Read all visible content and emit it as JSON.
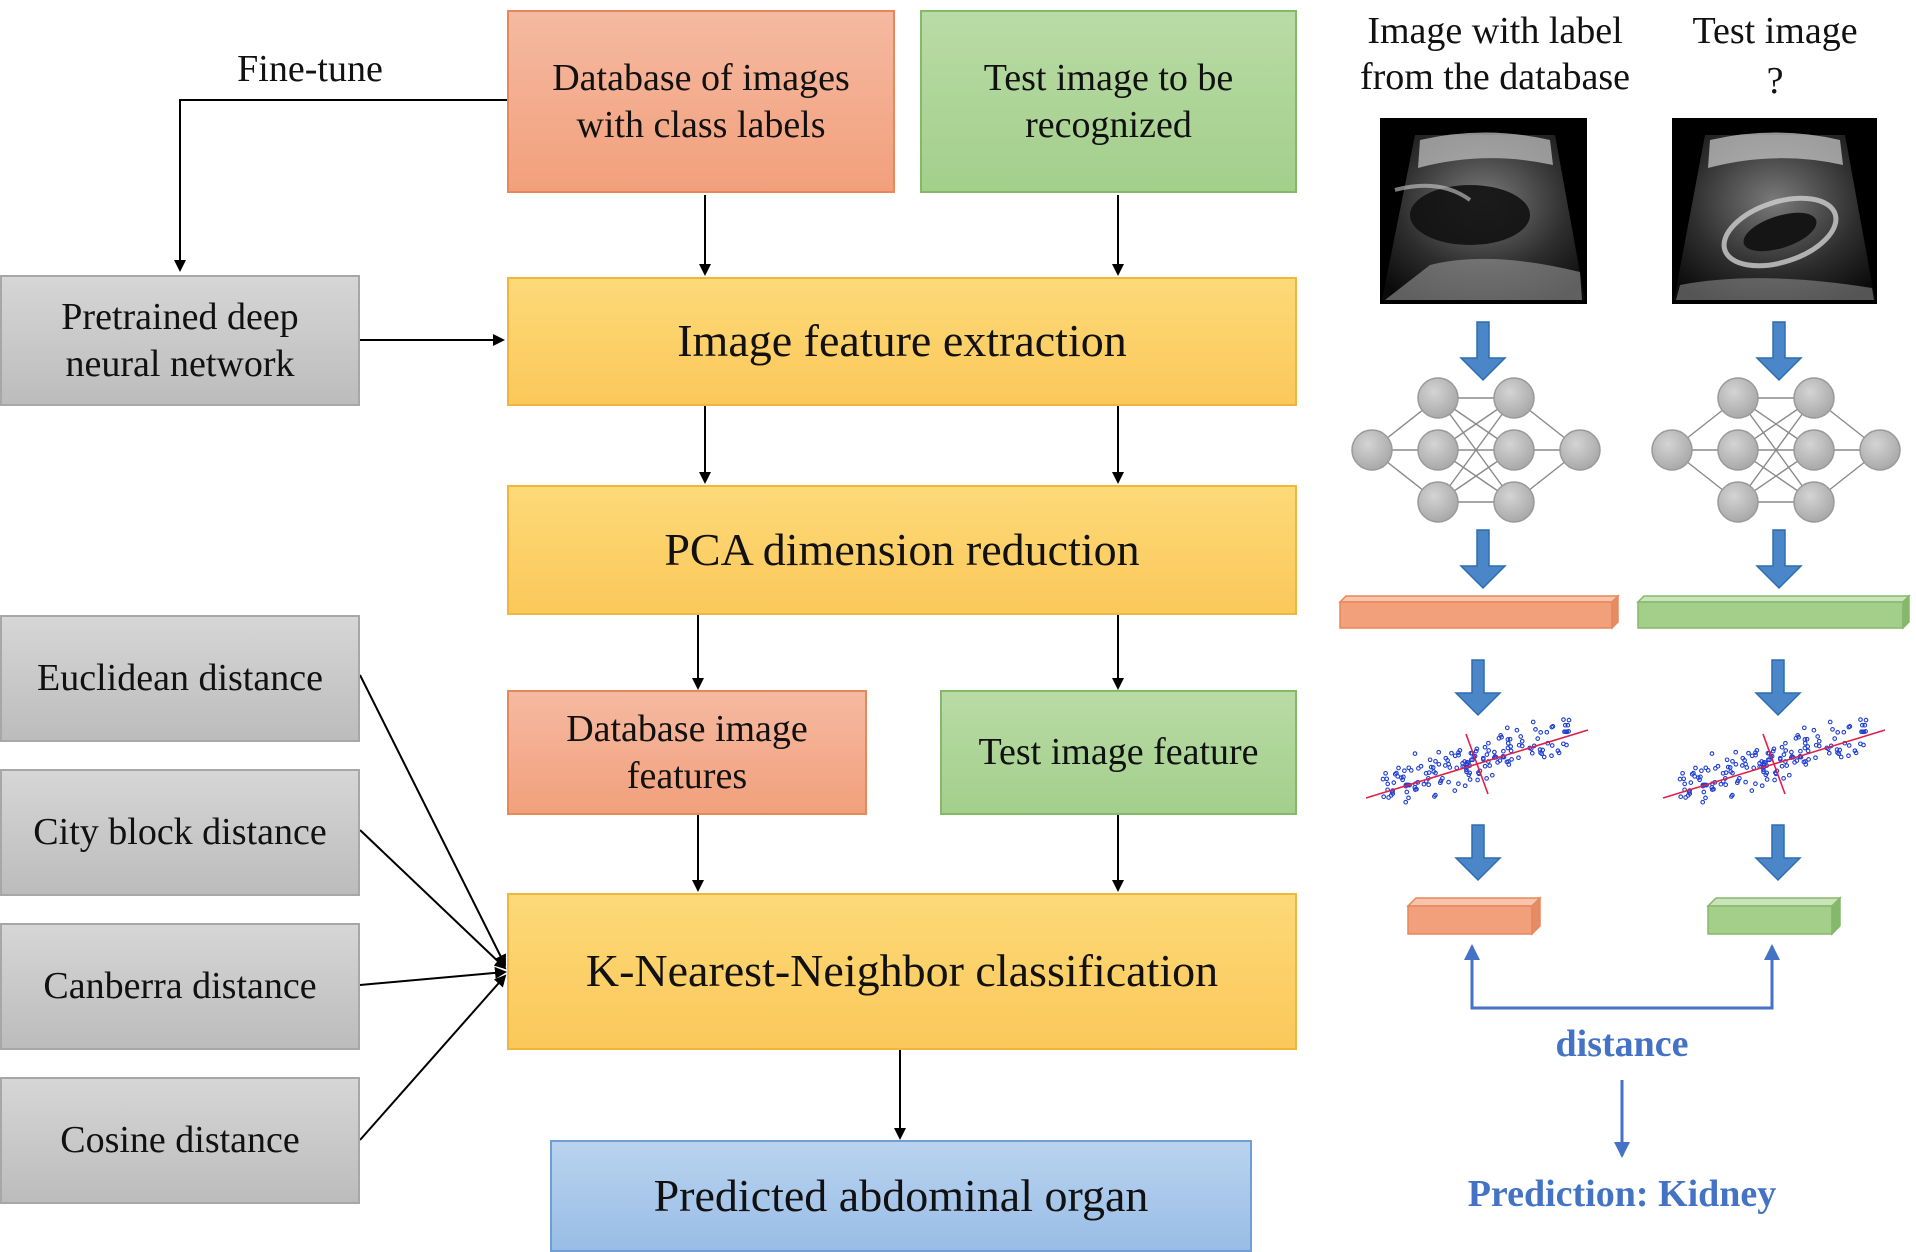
{
  "fine_tune_label": "Fine-tune",
  "boxes": {
    "database_images": "Database of images with class labels",
    "test_image": "Test image to be recognized",
    "pretrained": "Pretrained deep neural network",
    "feature_extraction": "Image feature extraction",
    "pca": "PCA dimension reduction",
    "db_features": "Database image features",
    "test_feature": "Test image feature",
    "knn": "K-Nearest-Neighbor classification",
    "predicted": "Predicted abdominal organ"
  },
  "distances": {
    "euclidean": "Euclidean distance",
    "cityblock": "City block distance",
    "canberra": "Canberra distance",
    "cosine": "Cosine distance"
  },
  "right_panel": {
    "left_header": "Image with label from the database",
    "right_header_line1": "Test image",
    "right_header_line2": "?",
    "distance_label": "distance",
    "prediction": "Prediction: Kidney"
  },
  "colors": {
    "orange": "#f2a07c",
    "green": "#a3cf8b",
    "yellow": "#fbc85a",
    "gray": "#c4c4c4",
    "blue": "#99bde6",
    "arrow_blue": "#4a86c8",
    "text_blue": "#4472c4",
    "scatter_points": "#1f3fd0",
    "scatter_axes": "#e0204a"
  }
}
